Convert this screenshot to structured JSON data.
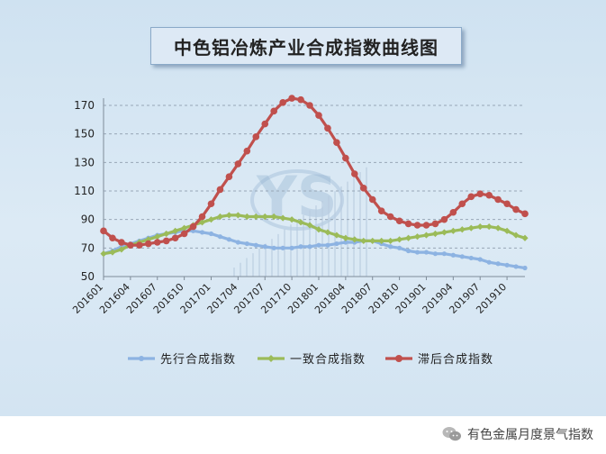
{
  "title": "中色铝冶炼产业合成指数曲线图",
  "brand": {
    "label": "有色金属月度景气指数",
    "icon": "wechat-icon"
  },
  "watermark": {
    "text": "YS",
    "color": "#8fb0cf"
  },
  "chart_data": {
    "type": "line",
    "title": "中色铝冶炼产业合成指数曲线图",
    "xlabel": "",
    "ylabel": "",
    "ylim": [
      50,
      170
    ],
    "yticks": [
      50,
      70,
      90,
      110,
      130,
      150,
      170
    ],
    "grid": "horizontal dashed",
    "legend_position": "bottom",
    "x": [
      "201601",
      "201602",
      "201603",
      "201604",
      "201605",
      "201606",
      "201607",
      "201608",
      "201609",
      "201610",
      "201611",
      "201612",
      "201701",
      "201702",
      "201703",
      "201704",
      "201705",
      "201706",
      "201707",
      "201708",
      "201709",
      "201710",
      "201711",
      "201712",
      "201801",
      "201802",
      "201803",
      "201804",
      "201805",
      "201806",
      "201807",
      "201808",
      "201809",
      "201810",
      "201811",
      "201812",
      "201901",
      "201902",
      "201903",
      "201904",
      "201905",
      "201906",
      "201907",
      "201908",
      "201909",
      "201910",
      "201911",
      "201912"
    ],
    "xtick_labels": [
      "201601",
      "201604",
      "201607",
      "201610",
      "201701",
      "201704",
      "201707",
      "201710",
      "201801",
      "201804",
      "201807",
      "201810",
      "201901",
      "201904",
      "201907",
      "201910"
    ],
    "series": [
      {
        "name": "先行合成指数",
        "color": "#8db3e2",
        "values": [
          66,
          68,
          71,
          73,
          75,
          77,
          79,
          80,
          81,
          82,
          82,
          81,
          80,
          78,
          76,
          74,
          73,
          72,
          71,
          70,
          70,
          70,
          71,
          71,
          72,
          72,
          73,
          74,
          74,
          75,
          75,
          73,
          71,
          70,
          68,
          67,
          67,
          66,
          66,
          65,
          64,
          63,
          62,
          60,
          59,
          58,
          57,
          56
        ]
      },
      {
        "name": "一致合成指数",
        "color": "#9bbb59",
        "values": [
          66,
          67,
          69,
          72,
          74,
          76,
          78,
          80,
          82,
          84,
          86,
          88,
          90,
          92,
          93,
          93,
          92,
          92,
          92,
          92,
          91,
          90,
          88,
          86,
          83,
          81,
          79,
          77,
          76,
          75,
          75,
          75,
          75,
          76,
          77,
          78,
          79,
          80,
          81,
          82,
          83,
          84,
          85,
          85,
          84,
          82,
          79,
          77
        ]
      },
      {
        "name": "滞后合成指数",
        "color": "#c0504d",
        "values": [
          82,
          77,
          74,
          72,
          72,
          73,
          74,
          75,
          77,
          80,
          85,
          92,
          101,
          111,
          120,
          129,
          138,
          148,
          157,
          166,
          172,
          175,
          174,
          170,
          163,
          154,
          144,
          133,
          122,
          112,
          104,
          96,
          92,
          89,
          87,
          86,
          86,
          87,
          90,
          95,
          101,
          106,
          108,
          107,
          104,
          101,
          97,
          94
        ]
      }
    ]
  }
}
